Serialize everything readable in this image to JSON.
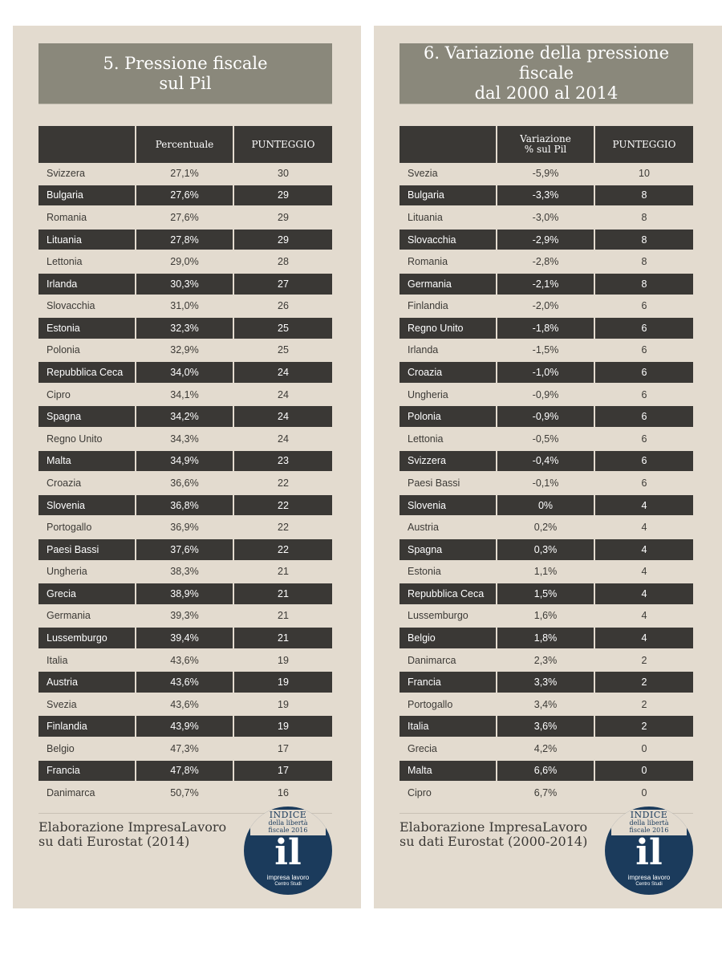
{
  "left": {
    "title": [
      "5. Pressione fiscale",
      "sul Pil"
    ],
    "headers": [
      "",
      "Percentuale",
      "PUNTEGGIO"
    ],
    "rows": [
      [
        "Svizzera",
        "27,1%",
        "30"
      ],
      [
        "Bulgaria",
        "27,6%",
        "29"
      ],
      [
        "Romania",
        "27,6%",
        "29"
      ],
      [
        "Lituania",
        "27,8%",
        "29"
      ],
      [
        "Lettonia",
        "29,0%",
        "28"
      ],
      [
        "Irlanda",
        "30,3%",
        "27"
      ],
      [
        "Slovacchia",
        "31,0%",
        "26"
      ],
      [
        "Estonia",
        "32,3%",
        "25"
      ],
      [
        "Polonia",
        "32,9%",
        "25"
      ],
      [
        "Repubblica Ceca",
        "34,0%",
        "24"
      ],
      [
        "Cipro",
        "34,1%",
        "24"
      ],
      [
        "Spagna",
        "34,2%",
        "24"
      ],
      [
        "Regno Unito",
        "34,3%",
        "24"
      ],
      [
        "Malta",
        "34,9%",
        "23"
      ],
      [
        "Croazia",
        "36,6%",
        "22"
      ],
      [
        "Slovenia",
        "36,8%",
        "22"
      ],
      [
        "Portogallo",
        "36,9%",
        "22"
      ],
      [
        "Paesi Bassi",
        "37,6%",
        "22"
      ],
      [
        "Ungheria",
        "38,3%",
        "21"
      ],
      [
        "Grecia",
        "38,9%",
        "21"
      ],
      [
        "Germania",
        "39,3%",
        "21"
      ],
      [
        "Lussemburgo",
        "39,4%",
        "21"
      ],
      [
        "Italia",
        "43,6%",
        "19"
      ],
      [
        "Austria",
        "43,6%",
        "19"
      ],
      [
        "Svezia",
        "43,6%",
        "19"
      ],
      [
        "Finlandia",
        "43,9%",
        "19"
      ],
      [
        "Belgio",
        "47,3%",
        "17"
      ],
      [
        "Francia",
        "47,8%",
        "17"
      ],
      [
        "Danimarca",
        "50,7%",
        "16"
      ]
    ],
    "source": [
      "Elaborazione ImpresaLavoro",
      "su dati Eurostat (2014)"
    ]
  },
  "right": {
    "title": [
      "6. Variazione della pressione fiscale",
      "dal 2000 al 2014"
    ],
    "headers": [
      "",
      "Variazione % sul Pil",
      "PUNTEGGIO"
    ],
    "rows": [
      [
        "Svezia",
        "-5,9%",
        "10"
      ],
      [
        "Bulgaria",
        "-3,3%",
        "8"
      ],
      [
        "Lituania",
        "-3,0%",
        "8"
      ],
      [
        "Slovacchia",
        "-2,9%",
        "8"
      ],
      [
        "Romania",
        "-2,8%",
        "8"
      ],
      [
        "Germania",
        "-2,1%",
        "8"
      ],
      [
        "Finlandia",
        "-2,0%",
        "6"
      ],
      [
        "Regno Unito",
        "-1,8%",
        "6"
      ],
      [
        "Irlanda",
        "-1,5%",
        "6"
      ],
      [
        "Croazia",
        "-1,0%",
        "6"
      ],
      [
        "Ungheria",
        "-0,9%",
        "6"
      ],
      [
        "Polonia",
        "-0,9%",
        "6"
      ],
      [
        "Lettonia",
        "-0,5%",
        "6"
      ],
      [
        "Svizzera",
        "-0,4%",
        "6"
      ],
      [
        "Paesi Bassi",
        "-0,1%",
        "6"
      ],
      [
        "Slovenia",
        "0%",
        "4"
      ],
      [
        "Austria",
        "0,2%",
        "4"
      ],
      [
        "Spagna",
        "0,3%",
        "4"
      ],
      [
        "Estonia",
        "1,1%",
        "4"
      ],
      [
        "Repubblica Ceca",
        "1,5%",
        "4"
      ],
      [
        "Lussemburgo",
        "1,6%",
        "4"
      ],
      [
        "Belgio",
        "1,8%",
        "4"
      ],
      [
        "Danimarca",
        "2,3%",
        "2"
      ],
      [
        "Francia",
        "3,3%",
        "2"
      ],
      [
        "Portogallo",
        "3,4%",
        "2"
      ],
      [
        "Italia",
        "3,6%",
        "2"
      ],
      [
        "Grecia",
        "4,2%",
        "0"
      ],
      [
        "Malta",
        "6,6%",
        "0"
      ],
      [
        "Cipro",
        "6,7%",
        "0"
      ]
    ],
    "source": [
      "Elaborazione ImpresaLavoro",
      "su dati Eurostat (2000-2014)"
    ]
  },
  "logo": {
    "banner_top": "INDICE",
    "banner_lines": [
      "della libertà",
      "fiscale 2016"
    ],
    "mark": "il",
    "brand": "impresa lavoro",
    "brand_sub": "Centro Studi"
  },
  "colors": {
    "panel": "#e3dbcf",
    "title_bg": "#8a887b",
    "dark_row": "#3a3835",
    "logo": "#1b3b5c"
  }
}
